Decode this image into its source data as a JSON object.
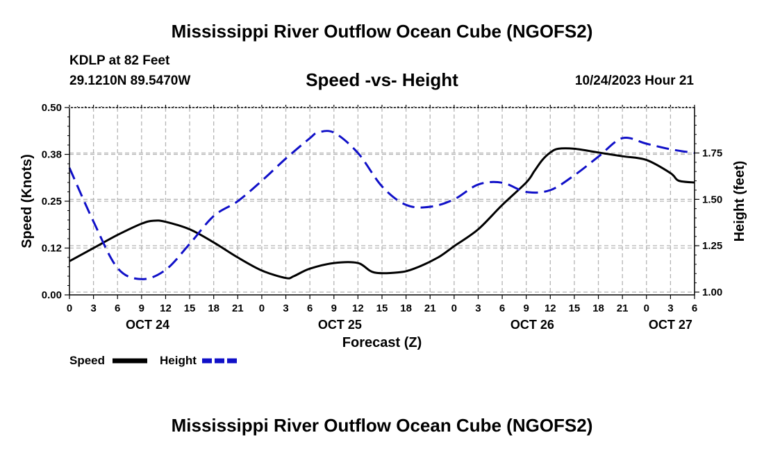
{
  "page": {
    "title_top": "Mississippi River Outflow Ocean Cube (NGOFS2)",
    "title_bottom": "Mississippi River Outflow Ocean Cube (NGOFS2)",
    "station": "KDLP at 82 Feet",
    "coords": "29.1210N  89.5470W",
    "subtitle": "Speed -vs- Height",
    "datetime": "10/24/2023 Hour 21"
  },
  "colors": {
    "speed": "#000000",
    "height": "#1010c8",
    "grid": "#b4b4b4"
  },
  "chart_data": {
    "type": "line",
    "title": "Speed -vs- Height",
    "xlabel": "Forecast (Z)",
    "ylabel": "Speed (Knots)",
    "ylabel_right": "Height (feet)",
    "x_range_hours": [
      0,
      78
    ],
    "x_tick_labels": [
      "0",
      "3",
      "6",
      "9",
      "12",
      "15",
      "18",
      "21",
      "0",
      "3",
      "6",
      "9",
      "12",
      "15",
      "18",
      "21",
      "0",
      "3",
      "6",
      "9",
      "12",
      "15",
      "18",
      "21",
      "0",
      "3",
      "6"
    ],
    "day_labels": [
      {
        "label": "OCT 24",
        "hour": 9.75
      },
      {
        "label": "OCT 25",
        "hour": 33.75
      },
      {
        "label": "OCT 26",
        "hour": 57.75
      },
      {
        "label": "OCT 27",
        "hour": 75
      }
    ],
    "y_left": {
      "range": [
        0,
        0.5
      ],
      "ticks": [
        0.0,
        0.125,
        0.25,
        0.375,
        0.5
      ],
      "tick_labels": [
        "0.00",
        "0.12",
        "0.25",
        "0.38",
        "0.50"
      ]
    },
    "y_right": {
      "range": [
        0.985,
        1.995
      ],
      "ticks": [
        1.0,
        1.25,
        1.5,
        1.75
      ],
      "tick_labels": [
        "1.00",
        "1.25",
        "1.50",
        "1.75"
      ]
    },
    "grid": true,
    "legend": {
      "position": "bottom-left",
      "items": [
        "Speed",
        "Height"
      ]
    },
    "series": [
      {
        "name": "Speed",
        "axis": "left",
        "style": "solid",
        "x": [
          0,
          3,
          6,
          9,
          10.5,
          12,
          15,
          18,
          21,
          24,
          27,
          28,
          30,
          33,
          36,
          38,
          41,
          43,
          46,
          48,
          51,
          54,
          57,
          58,
          59,
          60,
          61,
          63,
          66,
          69,
          72,
          75,
          76,
          78
        ],
        "y": [
          0.09,
          0.125,
          0.16,
          0.19,
          0.198,
          0.195,
          0.175,
          0.14,
          0.1,
          0.065,
          0.045,
          0.05,
          0.07,
          0.085,
          0.085,
          0.06,
          0.06,
          0.07,
          0.1,
          0.13,
          0.175,
          0.24,
          0.3,
          0.33,
          0.36,
          0.38,
          0.39,
          0.39,
          0.38,
          0.37,
          0.36,
          0.325,
          0.305,
          0.3
        ]
      },
      {
        "name": "Height",
        "axis": "right",
        "style": "dashed",
        "x": [
          0,
          3,
          6,
          9,
          12,
          15,
          18,
          21,
          24,
          27,
          30,
          31,
          33,
          36,
          39,
          42,
          45,
          48,
          51,
          54,
          57,
          60,
          63,
          66,
          69,
          72,
          75,
          78
        ],
        "y": [
          1.67,
          1.38,
          1.13,
          1.07,
          1.12,
          1.26,
          1.41,
          1.49,
          1.6,
          1.72,
          1.83,
          1.86,
          1.86,
          1.75,
          1.57,
          1.47,
          1.46,
          1.5,
          1.58,
          1.59,
          1.54,
          1.55,
          1.63,
          1.73,
          1.83,
          1.8,
          1.77,
          1.75
        ]
      }
    ]
  }
}
